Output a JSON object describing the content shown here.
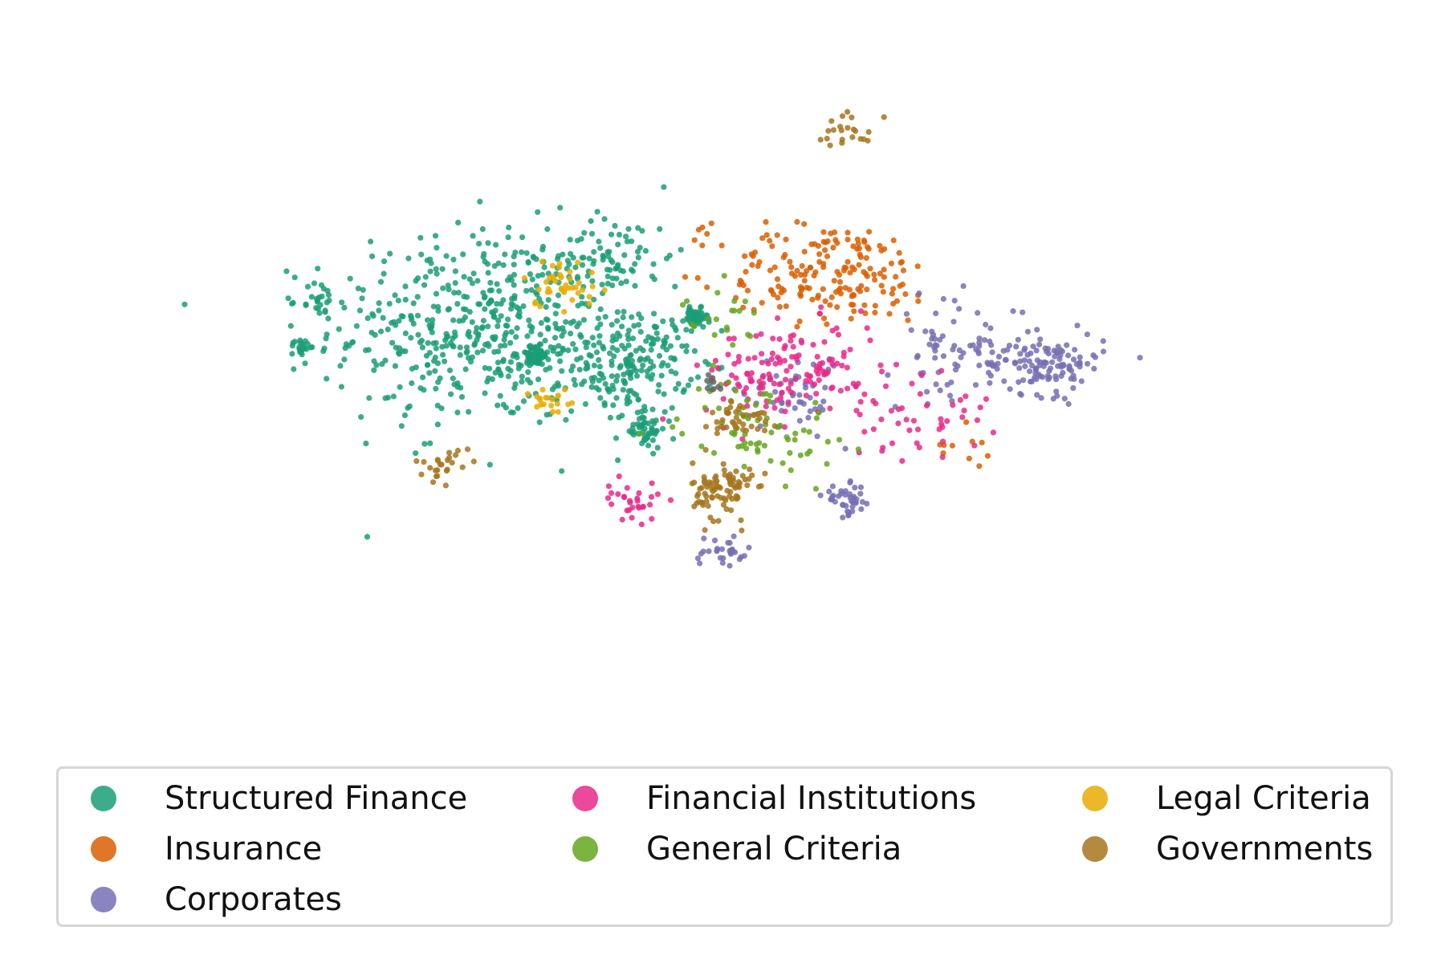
{
  "chart_data": {
    "type": "scatter",
    "title": "",
    "xlabel": "",
    "ylabel": "",
    "axes_visible": false,
    "grid": false,
    "legend_placement": "bottom, 3 columns",
    "xlim": [
      -60,
      60
    ],
    "ylim": [
      -35,
      35
    ],
    "series": [
      {
        "name": "Structured Finance",
        "color": "#1b9e77",
        "clusters": [
          {
            "center": [
              -26,
              5
            ],
            "spread": [
              16,
              10
            ],
            "count": 520
          },
          {
            "center": [
              -10,
              1
            ],
            "spread": [
              6,
              5
            ],
            "count": 180
          },
          {
            "center": [
              -21,
              2
            ],
            "spread": [
              1.5,
              1
            ],
            "count": 70
          },
          {
            "center": [
              -3,
              6
            ],
            "spread": [
              1.2,
              1
            ],
            "count": 55
          },
          {
            "center": [
              -9,
              -6
            ],
            "spread": [
              2.5,
              2
            ],
            "count": 50
          },
          {
            "center": [
              -12,
              13
            ],
            "spread": [
              6,
              4
            ],
            "count": 60
          },
          {
            "center": [
              -47,
              3
            ],
            "spread": [
              1,
              1
            ],
            "count": 22
          },
          {
            "center": [
              -45,
              8
            ],
            "spread": [
              2,
              2
            ],
            "count": 25
          }
        ]
      },
      {
        "name": "Insurance",
        "color": "#d95f02",
        "clusters": [
          {
            "center": [
              12,
              11
            ],
            "spread": [
              11,
              5
            ],
            "count": 180
          },
          {
            "center": [
              28,
              -8
            ],
            "spread": [
              3,
              3
            ],
            "count": 10
          },
          {
            "center": [
              -2,
              16
            ],
            "spread": [
              1,
              1
            ],
            "count": 5
          }
        ]
      },
      {
        "name": "Corporates",
        "color": "#7570b3",
        "clusters": [
          {
            "center": [
              36,
              1
            ],
            "spread": [
              6,
              3
            ],
            "count": 120
          },
          {
            "center": [
              26,
              3
            ],
            "spread": [
              7,
              5
            ],
            "count": 70
          },
          {
            "center": [
              14,
              -14
            ],
            "spread": [
              2.5,
              1.5
            ],
            "count": 40
          },
          {
            "center": [
              0,
              -20
            ],
            "spread": [
              3,
              2
            ],
            "count": 30
          },
          {
            "center": [
              8,
              -2
            ],
            "spread": [
              5,
              4
            ],
            "count": 50
          }
        ]
      },
      {
        "name": "Financial Institutions",
        "color": "#e7298a",
        "clusters": [
          {
            "center": [
              8,
              0
            ],
            "spread": [
              9,
              5
            ],
            "count": 150
          },
          {
            "center": [
              -10,
              -14
            ],
            "spread": [
              3,
              2
            ],
            "count": 30
          },
          {
            "center": [
              22,
              -5
            ],
            "spread": [
              7,
              4
            ],
            "count": 40
          }
        ]
      },
      {
        "name": "General Criteria",
        "color": "#66a61e",
        "clusters": [
          {
            "center": [
              4,
              -6
            ],
            "spread": [
              8,
              5
            ],
            "count": 70
          },
          {
            "center": [
              0,
              6
            ],
            "spread": [
              4,
              3
            ],
            "count": 20
          }
        ]
      },
      {
        "name": "Legal Criteria",
        "color": "#e6ab02",
        "clusters": [
          {
            "center": [
              -18,
              10
            ],
            "spread": [
              4,
              2.5
            ],
            "count": 40
          },
          {
            "center": [
              -19,
              -3
            ],
            "spread": [
              2.5,
              2
            ],
            "count": 20
          }
        ]
      },
      {
        "name": "Governments",
        "color": "#a6761d",
        "clusters": [
          {
            "center": [
              0,
              -13
            ],
            "spread": [
              3,
              3
            ],
            "count": 90
          },
          {
            "center": [
              2,
              -5
            ],
            "spread": [
              3,
              2
            ],
            "count": 40
          },
          {
            "center": [
              -31,
              -10
            ],
            "spread": [
              3,
              1.5
            ],
            "count": 25
          },
          {
            "center": [
              14,
              27
            ],
            "spread": [
              3,
              2
            ],
            "count": 22
          }
        ]
      },
      {
        "name": "",
        "color": "#666666",
        "clusters": [
          {
            "center": [
              -1,
              -1
            ],
            "spread": [
              0.8,
              0.8
            ],
            "count": 10
          }
        ]
      }
    ]
  },
  "legend": {
    "entries": [
      {
        "label": "Structured Finance",
        "color": "#1b9e77"
      },
      {
        "label": "Insurance",
        "color": "#d95f02"
      },
      {
        "label": "Corporates",
        "color": "#7570b3"
      },
      {
        "label": "Financial Institutions",
        "color": "#e7298a"
      },
      {
        "label": "General Criteria",
        "color": "#66a61e"
      },
      {
        "label": "Legal Criteria",
        "color": "#e6ab02"
      },
      {
        "label": "Governments",
        "color": "#a6761d"
      }
    ]
  }
}
